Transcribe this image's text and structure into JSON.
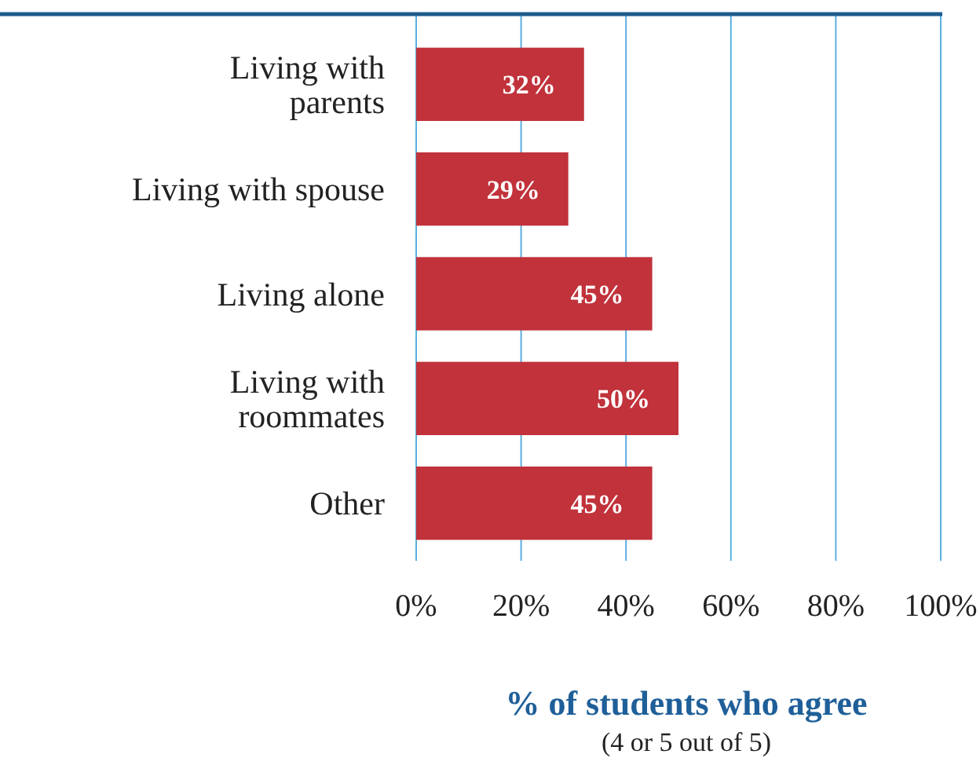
{
  "chart_data": {
    "type": "bar",
    "orientation": "horizontal",
    "xlabel": "% of students who agree",
    "annotations": [
      "(4 or 5 out of 5)"
    ],
    "categories": [
      "Living with parents",
      "Living with spouse",
      "Living alone",
      "Living with roommates",
      "Other"
    ],
    "values": [
      32,
      29,
      45,
      50,
      45
    ],
    "color": "#c1323b",
    "value_labels": [
      "32%",
      "29%",
      "45%",
      "50%",
      "45%"
    ],
    "xlim": [
      0,
      100
    ],
    "xticks": [
      {
        "value": 0,
        "label": "0%"
      },
      {
        "value": 20,
        "label": "20%"
      },
      {
        "value": 40,
        "label": "40%"
      },
      {
        "value": 60,
        "label": "60%"
      },
      {
        "value": 80,
        "label": "80%"
      },
      {
        "value": 100,
        "label": "100%"
      }
    ],
    "grid": "x"
  }
}
